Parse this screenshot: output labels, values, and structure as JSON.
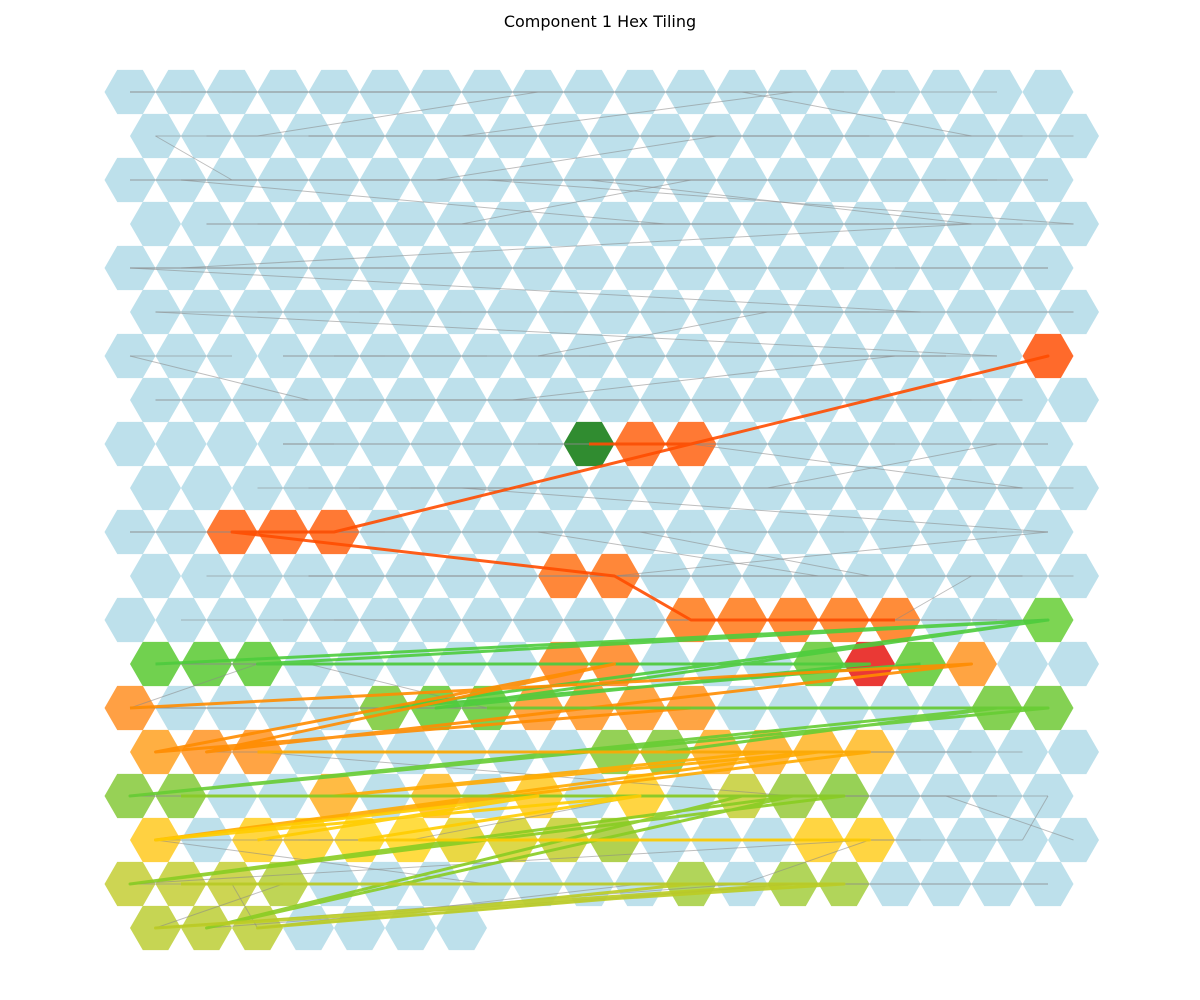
{
  "chart_data": {
    "type": "hex-tiling",
    "title": "Component 1 Hex Tiling",
    "grid": {
      "rows": 20,
      "columns_even_rows": 19,
      "columns_odd_rows": 19,
      "last_row_columns": 7
    },
    "axes_visible": false,
    "colors": {
      "background_cell": "#add8e6",
      "start_cell": "#1a7f1a",
      "peak_cell": "#e8231f",
      "gray_edge": "#888888"
    },
    "highlighted_cells": [
      {
        "row": 6,
        "col": 18,
        "color": "#ff5a14"
      },
      {
        "row": 8,
        "col": 9,
        "color": "#1a7f1a",
        "role": "start"
      },
      {
        "row": 8,
        "col": 10,
        "color": "#ff6a1e"
      },
      {
        "row": 8,
        "col": 11,
        "color": "#ff6a1e"
      },
      {
        "row": 10,
        "col": 2,
        "color": "#ff6a1e"
      },
      {
        "row": 10,
        "col": 3,
        "color": "#ff6a1e"
      },
      {
        "row": 10,
        "col": 4,
        "color": "#ff6a1e"
      },
      {
        "row": 11,
        "col": 8,
        "color": "#ff7a24"
      },
      {
        "row": 11,
        "col": 9,
        "color": "#ff7a24"
      },
      {
        "row": 12,
        "col": 11,
        "color": "#ff7f24"
      },
      {
        "row": 12,
        "col": 12,
        "color": "#ff7f24"
      },
      {
        "row": 12,
        "col": 13,
        "color": "#ff7f24"
      },
      {
        "row": 12,
        "col": 14,
        "color": "#ff7f24"
      },
      {
        "row": 12,
        "col": 15,
        "color": "#ff7f24"
      },
      {
        "row": 12,
        "col": 18,
        "color": "#6fd040"
      },
      {
        "row": 13,
        "col": 0,
        "color": "#62cc3c"
      },
      {
        "row": 13,
        "col": 1,
        "color": "#62cc3c"
      },
      {
        "row": 13,
        "col": 2,
        "color": "#62cc3c"
      },
      {
        "row": 13,
        "col": 8,
        "color": "#ff8a2a"
      },
      {
        "row": 13,
        "col": 9,
        "color": "#ff8a2a"
      },
      {
        "row": 13,
        "col": 13,
        "color": "#6ccc3e"
      },
      {
        "row": 13,
        "col": 14,
        "color": "#e8231f",
        "role": "peak"
      },
      {
        "row": 13,
        "col": 15,
        "color": "#66cc3c"
      },
      {
        "row": 13,
        "col": 16,
        "color": "#ff9a2e"
      },
      {
        "row": 14,
        "col": 0,
        "color": "#ff9630"
      },
      {
        "row": 14,
        "col": 5,
        "color": "#7fcc3f"
      },
      {
        "row": 14,
        "col": 6,
        "color": "#6ccc3e"
      },
      {
        "row": 14,
        "col": 7,
        "color": "#6ccc3e"
      },
      {
        "row": 14,
        "col": 8,
        "color": "#ff9a30"
      },
      {
        "row": 14,
        "col": 9,
        "color": "#ff9a30"
      },
      {
        "row": 14,
        "col": 10,
        "color": "#ff9a30"
      },
      {
        "row": 14,
        "col": 11,
        "color": "#ff9a30"
      },
      {
        "row": 14,
        "col": 17,
        "color": "#77cc40"
      },
      {
        "row": 14,
        "col": 18,
        "color": "#77cc40"
      },
      {
        "row": 15,
        "col": 0,
        "color": "#ffa62e"
      },
      {
        "row": 15,
        "col": 1,
        "color": "#ff9a30"
      },
      {
        "row": 15,
        "col": 2,
        "color": "#ff9a30"
      },
      {
        "row": 15,
        "col": 9,
        "color": "#88cc44"
      },
      {
        "row": 15,
        "col": 10,
        "color": "#88cc44"
      },
      {
        "row": 15,
        "col": 11,
        "color": "#ffb030"
      },
      {
        "row": 15,
        "col": 12,
        "color": "#ffb030"
      },
      {
        "row": 15,
        "col": 13,
        "color": "#ffb830"
      },
      {
        "row": 15,
        "col": 14,
        "color": "#ffbe30"
      },
      {
        "row": 16,
        "col": 0,
        "color": "#8ccc44"
      },
      {
        "row": 16,
        "col": 1,
        "color": "#8ccc44"
      },
      {
        "row": 16,
        "col": 4,
        "color": "#ffb430"
      },
      {
        "row": 16,
        "col": 6,
        "color": "#ffbe30"
      },
      {
        "row": 16,
        "col": 8,
        "color": "#ffcc2e"
      },
      {
        "row": 16,
        "col": 10,
        "color": "#ffd02e"
      },
      {
        "row": 16,
        "col": 12,
        "color": "#c8d040"
      },
      {
        "row": 16,
        "col": 13,
        "color": "#9ccc44"
      },
      {
        "row": 16,
        "col": 14,
        "color": "#8ccc44"
      },
      {
        "row": 17,
        "col": 0,
        "color": "#ffcc2c"
      },
      {
        "row": 17,
        "col": 2,
        "color": "#ffd22e"
      },
      {
        "row": 17,
        "col": 3,
        "color": "#ffd22e"
      },
      {
        "row": 17,
        "col": 4,
        "color": "#ffd82e"
      },
      {
        "row": 17,
        "col": 5,
        "color": "#ffd82e"
      },
      {
        "row": 17,
        "col": 6,
        "color": "#e8d430"
      },
      {
        "row": 17,
        "col": 7,
        "color": "#d8d436"
      },
      {
        "row": 17,
        "col": 8,
        "color": "#c8d03a"
      },
      {
        "row": 17,
        "col": 9,
        "color": "#a8cc3e"
      },
      {
        "row": 17,
        "col": 13,
        "color": "#ffd02e"
      },
      {
        "row": 17,
        "col": 14,
        "color": "#ffd02e"
      },
      {
        "row": 18,
        "col": 0,
        "color": "#c8d040"
      },
      {
        "row": 18,
        "col": 1,
        "color": "#c8d040"
      },
      {
        "row": 18,
        "col": 2,
        "color": "#c8d040"
      },
      {
        "row": 18,
        "col": 3,
        "color": "#b8d044"
      },
      {
        "row": 18,
        "col": 11,
        "color": "#a8d048"
      },
      {
        "row": 18,
        "col": 13,
        "color": "#a8d048"
      },
      {
        "row": 18,
        "col": 14,
        "color": "#a8d048"
      },
      {
        "row": 19,
        "col": 0,
        "color": "#c0d040"
      },
      {
        "row": 19,
        "col": 1,
        "color": "#c0d040"
      },
      {
        "row": 19,
        "col": 2,
        "color": "#c0d040"
      }
    ],
    "colored_paths": [
      {
        "color": "#ff4d00",
        "points": [
          [
            8,
            9
          ],
          [
            8,
            11
          ],
          [
            6,
            18
          ],
          [
            10,
            4
          ],
          [
            10,
            2
          ],
          [
            11,
            9
          ],
          [
            12,
            11
          ],
          [
            12,
            15
          ]
        ]
      },
      {
        "color": "#4ccc3c",
        "points": [
          [
            13,
            0
          ],
          [
            12,
            18
          ],
          [
            13,
            2
          ],
          [
            13,
            14
          ],
          [
            14,
            6
          ],
          [
            12,
            18
          ],
          [
            14,
            5
          ],
          [
            13,
            15
          ]
        ]
      },
      {
        "color": "#ff8c00",
        "points": [
          [
            14,
            0
          ],
          [
            13,
            16
          ],
          [
            15,
            1
          ],
          [
            13,
            9
          ],
          [
            15,
            0
          ],
          [
            14,
            11
          ]
        ]
      },
      {
        "color": "#66cc33",
        "points": [
          [
            14,
            7
          ],
          [
            14,
            18
          ],
          [
            16,
            0
          ],
          [
            14,
            17
          ],
          [
            15,
            10
          ]
        ]
      },
      {
        "color": "#ffaa00",
        "points": [
          [
            15,
            2
          ],
          [
            15,
            14
          ],
          [
            17,
            0
          ],
          [
            15,
            13
          ],
          [
            16,
            4
          ],
          [
            15,
            12
          ]
        ]
      },
      {
        "color": "#88cc22",
        "points": [
          [
            16,
            1
          ],
          [
            16,
            14
          ],
          [
            18,
            0
          ],
          [
            16,
            13
          ],
          [
            19,
            1
          ],
          [
            16,
            12
          ]
        ]
      },
      {
        "color": "#ffcc00",
        "points": [
          [
            17,
            2
          ],
          [
            16,
            8
          ],
          [
            17,
            0
          ],
          [
            16,
            10
          ],
          [
            17,
            4
          ],
          [
            17,
            14
          ],
          [
            17,
            13
          ]
        ]
      },
      {
        "color": "#bbcc22",
        "points": [
          [
            18,
            1
          ],
          [
            18,
            14
          ],
          [
            19,
            0
          ],
          [
            18,
            13
          ],
          [
            19,
            2
          ],
          [
            18,
            11
          ],
          [
            18,
            3
          ]
        ]
      }
    ]
  }
}
